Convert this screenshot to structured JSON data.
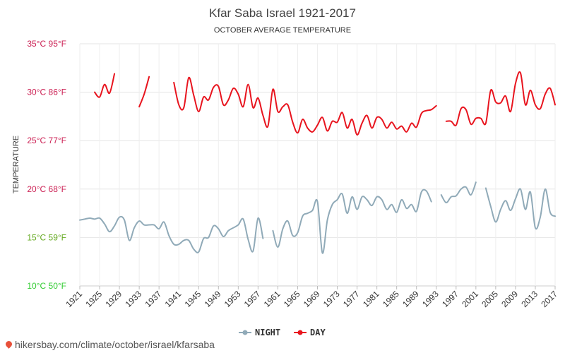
{
  "chart_data": {
    "type": "line",
    "title": "Kfar Saba Israel 1921-2017",
    "subtitle": "OCTOBER AVERAGE TEMPERATURE",
    "ylabel": "TEMPERATURE",
    "ylim": [
      10,
      35
    ],
    "y_ticks": [
      {
        "c": 10,
        "label": "10°C 50°F",
        "color": "#33cc33"
      },
      {
        "c": 15,
        "label": "15°C 59°F",
        "color": "#66aa22"
      },
      {
        "c": 20,
        "label": "20°C 68°F",
        "color": "#cc2255"
      },
      {
        "c": 25,
        "label": "25°C 77°F",
        "color": "#cc2255"
      },
      {
        "c": 30,
        "label": "30°C 86°F",
        "color": "#cc2255"
      },
      {
        "c": 35,
        "label": "35°C 95°F",
        "color": "#cc2255"
      }
    ],
    "x_range": [
      1921,
      2017
    ],
    "x_ticks": [
      1921,
      1925,
      1929,
      1933,
      1937,
      1941,
      1945,
      1949,
      1953,
      1957,
      1961,
      1965,
      1969,
      1973,
      1977,
      1981,
      1985,
      1989,
      1993,
      1997,
      2001,
      2005,
      2009,
      2013,
      2017
    ],
    "grid": true,
    "legend_position": "bottom-center",
    "series": [
      {
        "name": "NIGHT",
        "color": "#90aab8",
        "values": [
          16.8,
          16.9,
          17.0,
          16.9,
          17.0,
          16.4,
          15.6,
          16.2,
          17.1,
          16.8,
          14.7,
          16.0,
          16.7,
          16.3,
          16.3,
          16.3,
          15.9,
          16.6,
          15.2,
          14.3,
          14.3,
          14.7,
          14.7,
          13.8,
          13.5,
          14.9,
          15.0,
          16.2,
          15.9,
          15.1,
          15.7,
          16.0,
          16.3,
          16.9,
          14.8,
          13.6,
          17.0,
          14.9,
          null,
          15.7,
          14.0,
          15.9,
          16.7,
          15.2,
          15.5,
          17.2,
          17.5,
          17.8,
          18.7,
          13.4,
          16.8,
          18.4,
          18.9,
          19.5,
          17.5,
          19.2,
          17.9,
          19.2,
          18.9,
          18.3,
          19.2,
          18.9,
          17.9,
          18.4,
          17.6,
          18.9,
          18.0,
          18.4,
          17.7,
          19.7,
          19.8,
          18.7,
          null,
          19.4,
          18.6,
          19.2,
          19.3,
          20.0,
          20.2,
          19.4,
          20.7,
          null,
          20.1,
          18.2,
          16.6,
          17.9,
          18.8,
          17.8,
          19.0,
          20.0,
          17.9,
          19.7,
          16.0,
          17.1,
          20.0,
          17.6,
          17.2
        ]
      },
      {
        "name": "DAY",
        "color": "#e8141e",
        "values": [
          null,
          null,
          null,
          30.0,
          29.5,
          30.8,
          29.9,
          31.9,
          null,
          null,
          null,
          null,
          28.5,
          29.8,
          31.6,
          null,
          null,
          null,
          null,
          31.0,
          28.7,
          28.4,
          31.5,
          29.7,
          28.0,
          29.5,
          29.2,
          30.5,
          30.6,
          28.7,
          29.2,
          30.4,
          29.8,
          28.5,
          30.8,
          28.4,
          29.4,
          27.6,
          26.5,
          30.3,
          28.0,
          28.5,
          28.7,
          26.9,
          25.8,
          27.2,
          26.3,
          25.9,
          26.6,
          27.4,
          26.0,
          27.0,
          26.9,
          27.9,
          26.3,
          27.2,
          25.6,
          26.8,
          27.6,
          26.3,
          27.4,
          27.2,
          26.3,
          26.9,
          26.2,
          26.5,
          25.9,
          26.8,
          26.4,
          27.8,
          28.1,
          28.2,
          28.6,
          null,
          27.0,
          27.0,
          26.6,
          28.3,
          28.2,
          26.7,
          27.3,
          27.3,
          26.8,
          30.2,
          29.0,
          28.9,
          29.6,
          28.0,
          30.9,
          32.0,
          28.7,
          30.2,
          28.7,
          28.3,
          29.8,
          30.4,
          28.7
        ]
      }
    ]
  },
  "footer": {
    "url": "hikersbay.com/climate/october/israel/kfarsaba"
  }
}
